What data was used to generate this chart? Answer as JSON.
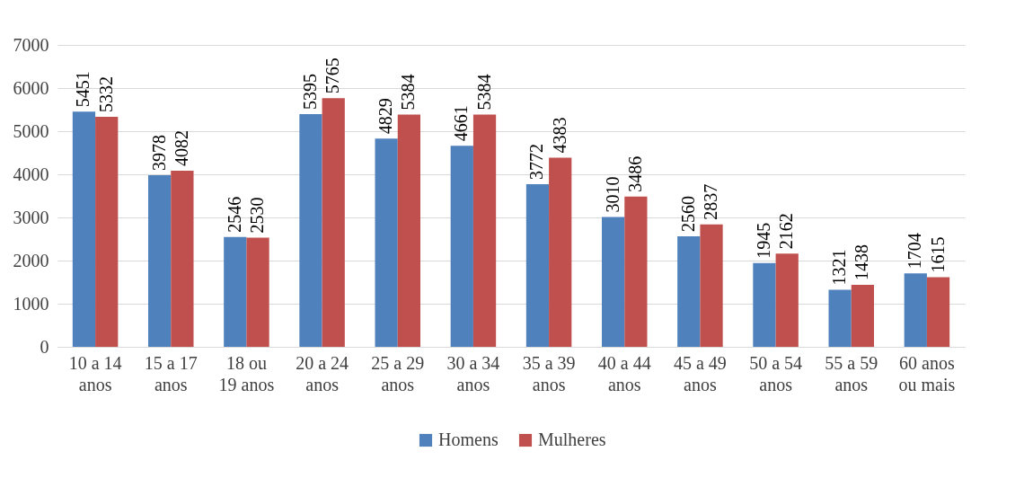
{
  "chart_data": {
    "type": "bar",
    "categories": [
      "10 a 14\nanos",
      "15 a 17\nanos",
      "18 ou\n19 anos",
      "20 a 24\nanos",
      "25 a 29\nanos",
      "30 a 34\nanos",
      "35 a 39\nanos",
      "40 a 44\nanos",
      "45 a 49\nanos",
      "50 a 54\nanos",
      "55 a 59\nanos",
      "60 anos\nou mais"
    ],
    "series": [
      {
        "name": "Homens",
        "color": "#4f81bd",
        "values": [
          5451,
          3978,
          2546,
          5395,
          4829,
          4661,
          3772,
          3010,
          2560,
          1945,
          1321,
          1704
        ]
      },
      {
        "name": "Mulheres",
        "color": "#c0504d",
        "values": [
          5332,
          4082,
          2530,
          5765,
          5384,
          5384,
          4383,
          3486,
          2837,
          2162,
          1438,
          1615
        ]
      }
    ],
    "ylim": [
      0,
      7000
    ],
    "yticks": [
      0,
      1000,
      2000,
      3000,
      4000,
      5000,
      6000,
      7000
    ],
    "grid": "y",
    "legend": "bottom",
    "data_labels": true
  }
}
